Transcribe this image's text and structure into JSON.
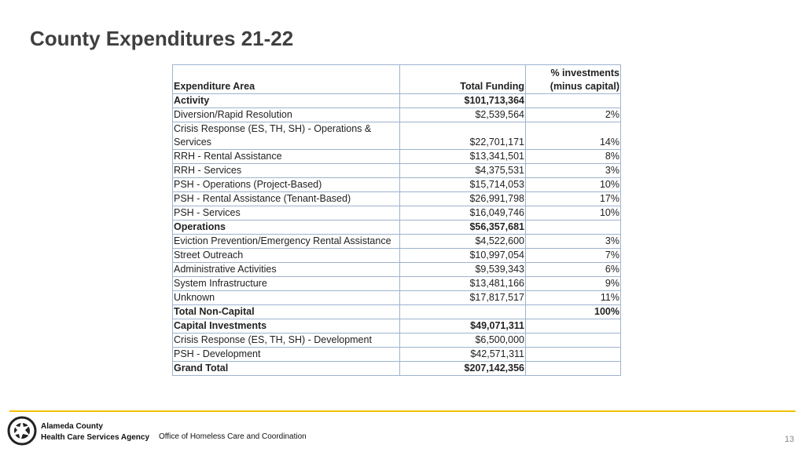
{
  "title": "County Expenditures 21-22",
  "table": {
    "header": [
      "Expenditure Area",
      "Total Funding",
      "% investments (minus capital)"
    ],
    "rows": [
      {
        "area": "Activity",
        "funding": "$101,713,364",
        "bold": true
      },
      {
        "area": "Diversion/Rapid Resolution",
        "funding": "$2,539,564",
        "percent": "2%"
      },
      {
        "area": "Crisis Response (ES, TH, SH) - Operations & Services",
        "funding": "$22,701,171",
        "percent": "14%"
      },
      {
        "area": "RRH - Rental Assistance",
        "funding": "$13,341,501",
        "percent": "8%"
      },
      {
        "area": "RRH - Services",
        "funding": "$4,375,531",
        "percent": "3%"
      },
      {
        "area": "PSH - Operations (Project-Based)",
        "funding": "$15,714,053",
        "percent": "10%"
      },
      {
        "area": "PSH - Rental Assistance (Tenant-Based)",
        "funding": "$26,991,798",
        "percent": "17%"
      },
      {
        "area": "PSH - Services",
        "funding": "$16,049,746",
        "percent": "10%"
      },
      {
        "area": "Operations",
        "funding": "$56,357,681",
        "bold": true
      },
      {
        "area": "Eviction Prevention/Emergency Rental Assistance",
        "funding": "$4,522,600",
        "percent": "3%"
      },
      {
        "area": "Street Outreach",
        "funding": "$10,997,054",
        "percent": "7%"
      },
      {
        "area": "Administrative Activities",
        "funding": "$9,539,343",
        "percent": "6%"
      },
      {
        "area": "System Infrastructure",
        "funding": "$13,481,166",
        "percent": "9%"
      },
      {
        "area": "Unknown",
        "funding": "$17,817,517",
        "percent": "11%"
      },
      {
        "area": "Total Non-Capital",
        "percent": "100%",
        "bold": true
      },
      {
        "area": "Capital Investments",
        "funding": "$49,071,311",
        "bold": true
      },
      {
        "area": "Crisis Response (ES, TH, SH) - Development",
        "funding": "$6,500,000"
      },
      {
        "area": "PSH - Development",
        "funding": "$42,571,311"
      },
      {
        "area": "Grand Total",
        "funding": "$207,142,356",
        "bold": true
      }
    ]
  },
  "footer": {
    "agency": [
      "Alameda County",
      "Health Care Services Agency"
    ],
    "office": "Office of Homeless Care and Coordination",
    "page": "13"
  }
}
